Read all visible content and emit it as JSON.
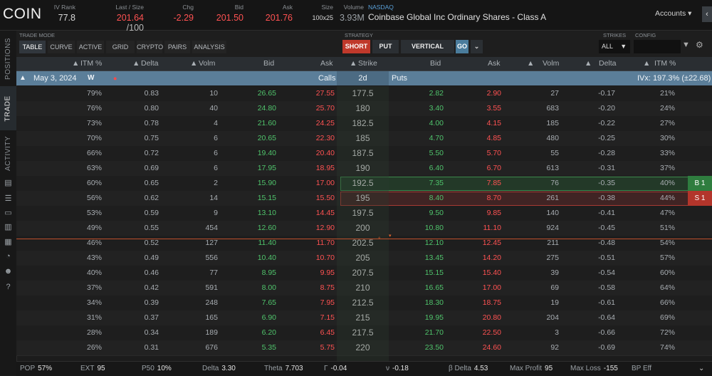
{
  "header": {
    "symbol": "COIN",
    "iv_rank": {
      "label": "IV Rank",
      "value": "77.8"
    },
    "last_size": {
      "label": "Last / Size",
      "value": "201.64",
      "size": "/100"
    },
    "chg": {
      "label": "Chg",
      "value": "-2.29"
    },
    "bid": {
      "label": "Bid",
      "value": "201.50"
    },
    "ask": {
      "label": "Ask",
      "value": "201.76"
    },
    "size": {
      "label": "Size",
      "value": "100x25"
    },
    "volume": {
      "label": "Volume",
      "value": "3.93M"
    },
    "exchange": "NASDAQ",
    "company": "Coinbase Global Inc Ordinary Shares - Class A",
    "accounts": "Accounts"
  },
  "rail": {
    "tabs": [
      "POSITIONS",
      "TRADE",
      "ACTIVITY"
    ]
  },
  "toolbar": {
    "trade_mode_label": "TRADE MODE",
    "modes": [
      "TABLE",
      "CURVE",
      "ACTIVE",
      "GRID",
      "CRYPTO",
      "PAIRS",
      "ANALYSIS"
    ],
    "strategy_label": "STRATEGY",
    "strategy": {
      "short": "SHORT",
      "put": "PUT",
      "vertical": "VERTICAL",
      "go": "GO"
    },
    "strikes_label": "STRIKES",
    "strikes_value": "ALL",
    "config_label": "CONFIG"
  },
  "columns": {
    "itm": "ITM %",
    "delta": "Delta",
    "volm": "Volm",
    "bid": "Bid",
    "ask": "Ask",
    "strike": "Strike",
    "p_bid": "Bid",
    "p_ask": "Ask",
    "p_volm": "Volm",
    "p_delta": "Delta",
    "p_itm": "ITM %"
  },
  "expiration": {
    "date": "May 3, 2024",
    "weekly": "W",
    "calls": "Calls",
    "days": "2d",
    "puts": "Puts",
    "ivx": "IVx: 197.3% (±22.68)"
  },
  "rows": [
    {
      "c_itm": "79%",
      "c_delta": "0.83",
      "c_volm": "10",
      "c_bid": "26.65",
      "c_ask": "27.55",
      "strike": "177.5",
      "p_bid": "2.82",
      "p_ask": "2.90",
      "p_volm": "27",
      "p_delta": "-0.17",
      "p_itm": "21%"
    },
    {
      "c_itm": "76%",
      "c_delta": "0.80",
      "c_volm": "40",
      "c_bid": "24.80",
      "c_ask": "25.70",
      "strike": "180",
      "p_bid": "3.40",
      "p_ask": "3.55",
      "p_volm": "683",
      "p_delta": "-0.20",
      "p_itm": "24%"
    },
    {
      "c_itm": "73%",
      "c_delta": "0.78",
      "c_volm": "4",
      "c_bid": "21.60",
      "c_ask": "24.25",
      "strike": "182.5",
      "p_bid": "4.00",
      "p_ask": "4.15",
      "p_volm": "185",
      "p_delta": "-0.22",
      "p_itm": "27%"
    },
    {
      "c_itm": "70%",
      "c_delta": "0.75",
      "c_volm": "6",
      "c_bid": "20.65",
      "c_ask": "22.30",
      "strike": "185",
      "p_bid": "4.70",
      "p_ask": "4.85",
      "p_volm": "480",
      "p_delta": "-0.25",
      "p_itm": "30%"
    },
    {
      "c_itm": "66%",
      "c_delta": "0.72",
      "c_volm": "6",
      "c_bid": "19.40",
      "c_ask": "20.40",
      "strike": "187.5",
      "p_bid": "5.50",
      "p_ask": "5.70",
      "p_volm": "55",
      "p_delta": "-0.28",
      "p_itm": "33%"
    },
    {
      "c_itm": "63%",
      "c_delta": "0.69",
      "c_volm": "6",
      "c_bid": "17.95",
      "c_ask": "18.95",
      "strike": "190",
      "p_bid": "6.40",
      "p_ask": "6.70",
      "p_volm": "613",
      "p_delta": "-0.31",
      "p_itm": "37%"
    },
    {
      "c_itm": "60%",
      "c_delta": "0.65",
      "c_volm": "2",
      "c_bid": "15.90",
      "c_ask": "17.00",
      "strike": "192.5",
      "p_bid": "7.35",
      "p_ask": "7.85",
      "p_volm": "76",
      "p_delta": "-0.35",
      "p_itm": "40%",
      "leg": "B 1"
    },
    {
      "c_itm": "56%",
      "c_delta": "0.62",
      "c_volm": "14",
      "c_bid": "15.15",
      "c_ask": "15.50",
      "strike": "195",
      "p_bid": "8.40",
      "p_ask": "8.70",
      "p_volm": "261",
      "p_delta": "-0.38",
      "p_itm": "44%",
      "leg": "S 1"
    },
    {
      "c_itm": "53%",
      "c_delta": "0.59",
      "c_volm": "9",
      "c_bid": "13.10",
      "c_ask": "14.45",
      "strike": "197.5",
      "p_bid": "9.50",
      "p_ask": "9.85",
      "p_volm": "140",
      "p_delta": "-0.41",
      "p_itm": "47%"
    },
    {
      "c_itm": "49%",
      "c_delta": "0.55",
      "c_volm": "454",
      "c_bid": "12.60",
      "c_ask": "12.90",
      "strike": "200",
      "p_bid": "10.80",
      "p_ask": "11.10",
      "p_volm": "924",
      "p_delta": "-0.45",
      "p_itm": "51%"
    },
    {
      "c_itm": "46%",
      "c_delta": "0.52",
      "c_volm": "127",
      "c_bid": "11.40",
      "c_ask": "11.70",
      "strike": "202.5",
      "p_bid": "12.10",
      "p_ask": "12.45",
      "p_volm": "211",
      "p_delta": "-0.48",
      "p_itm": "54%"
    },
    {
      "c_itm": "43%",
      "c_delta": "0.49",
      "c_volm": "556",
      "c_bid": "10.40",
      "c_ask": "10.70",
      "strike": "205",
      "p_bid": "13.45",
      "p_ask": "14.20",
      "p_volm": "275",
      "p_delta": "-0.51",
      "p_itm": "57%"
    },
    {
      "c_itm": "40%",
      "c_delta": "0.46",
      "c_volm": "77",
      "c_bid": "8.95",
      "c_ask": "9.95",
      "strike": "207.5",
      "p_bid": "15.15",
      "p_ask": "15.40",
      "p_volm": "39",
      "p_delta": "-0.54",
      "p_itm": "60%"
    },
    {
      "c_itm": "37%",
      "c_delta": "0.42",
      "c_volm": "591",
      "c_bid": "8.00",
      "c_ask": "8.75",
      "strike": "210",
      "p_bid": "16.65",
      "p_ask": "17.00",
      "p_volm": "69",
      "p_delta": "-0.58",
      "p_itm": "64%"
    },
    {
      "c_itm": "34%",
      "c_delta": "0.39",
      "c_volm": "248",
      "c_bid": "7.65",
      "c_ask": "7.95",
      "strike": "212.5",
      "p_bid": "18.30",
      "p_ask": "18.75",
      "p_volm": "19",
      "p_delta": "-0.61",
      "p_itm": "66%"
    },
    {
      "c_itm": "31%",
      "c_delta": "0.37",
      "c_volm": "165",
      "c_bid": "6.90",
      "c_ask": "7.15",
      "strike": "215",
      "p_bid": "19.95",
      "p_ask": "20.80",
      "p_volm": "204",
      "p_delta": "-0.64",
      "p_itm": "69%"
    },
    {
      "c_itm": "28%",
      "c_delta": "0.34",
      "c_volm": "189",
      "c_bid": "6.20",
      "c_ask": "6.45",
      "strike": "217.5",
      "p_bid": "21.70",
      "p_ask": "22.50",
      "p_volm": "3",
      "p_delta": "-0.66",
      "p_itm": "72%"
    },
    {
      "c_itm": "26%",
      "c_delta": "0.31",
      "c_volm": "676",
      "c_bid": "5.35",
      "c_ask": "5.75",
      "strike": "220",
      "p_bid": "23.50",
      "p_ask": "24.60",
      "p_volm": "92",
      "p_delta": "-0.69",
      "p_itm": "74%"
    }
  ],
  "bottom": {
    "pop": {
      "label": "POP",
      "value": "57%"
    },
    "ext": {
      "label": "EXT",
      "value": "95"
    },
    "p50": {
      "label": "P50",
      "value": "10%"
    },
    "delta": {
      "label": "Delta",
      "value": "3.30"
    },
    "theta": {
      "label": "Theta",
      "value": "7.703"
    },
    "gamma": {
      "label": "Γ",
      "value": "-0.04"
    },
    "vega": {
      "label": "ν",
      "value": "-0.18"
    },
    "beta_delta": {
      "label": "β Delta",
      "value": "4.53"
    },
    "max_profit": {
      "label": "Max Profit",
      "value": "95"
    },
    "max_loss": {
      "label": "Max Loss",
      "value": "-155"
    },
    "bp_eff": {
      "label": "BP Eff",
      "value": ""
    }
  },
  "colors": {
    "bid_green": "#4fc36b",
    "ask_red": "#ff5252",
    "expiry_bar": "#5b7e99",
    "short_btn": "#c0392b",
    "go_btn": "#4a7c9c"
  }
}
